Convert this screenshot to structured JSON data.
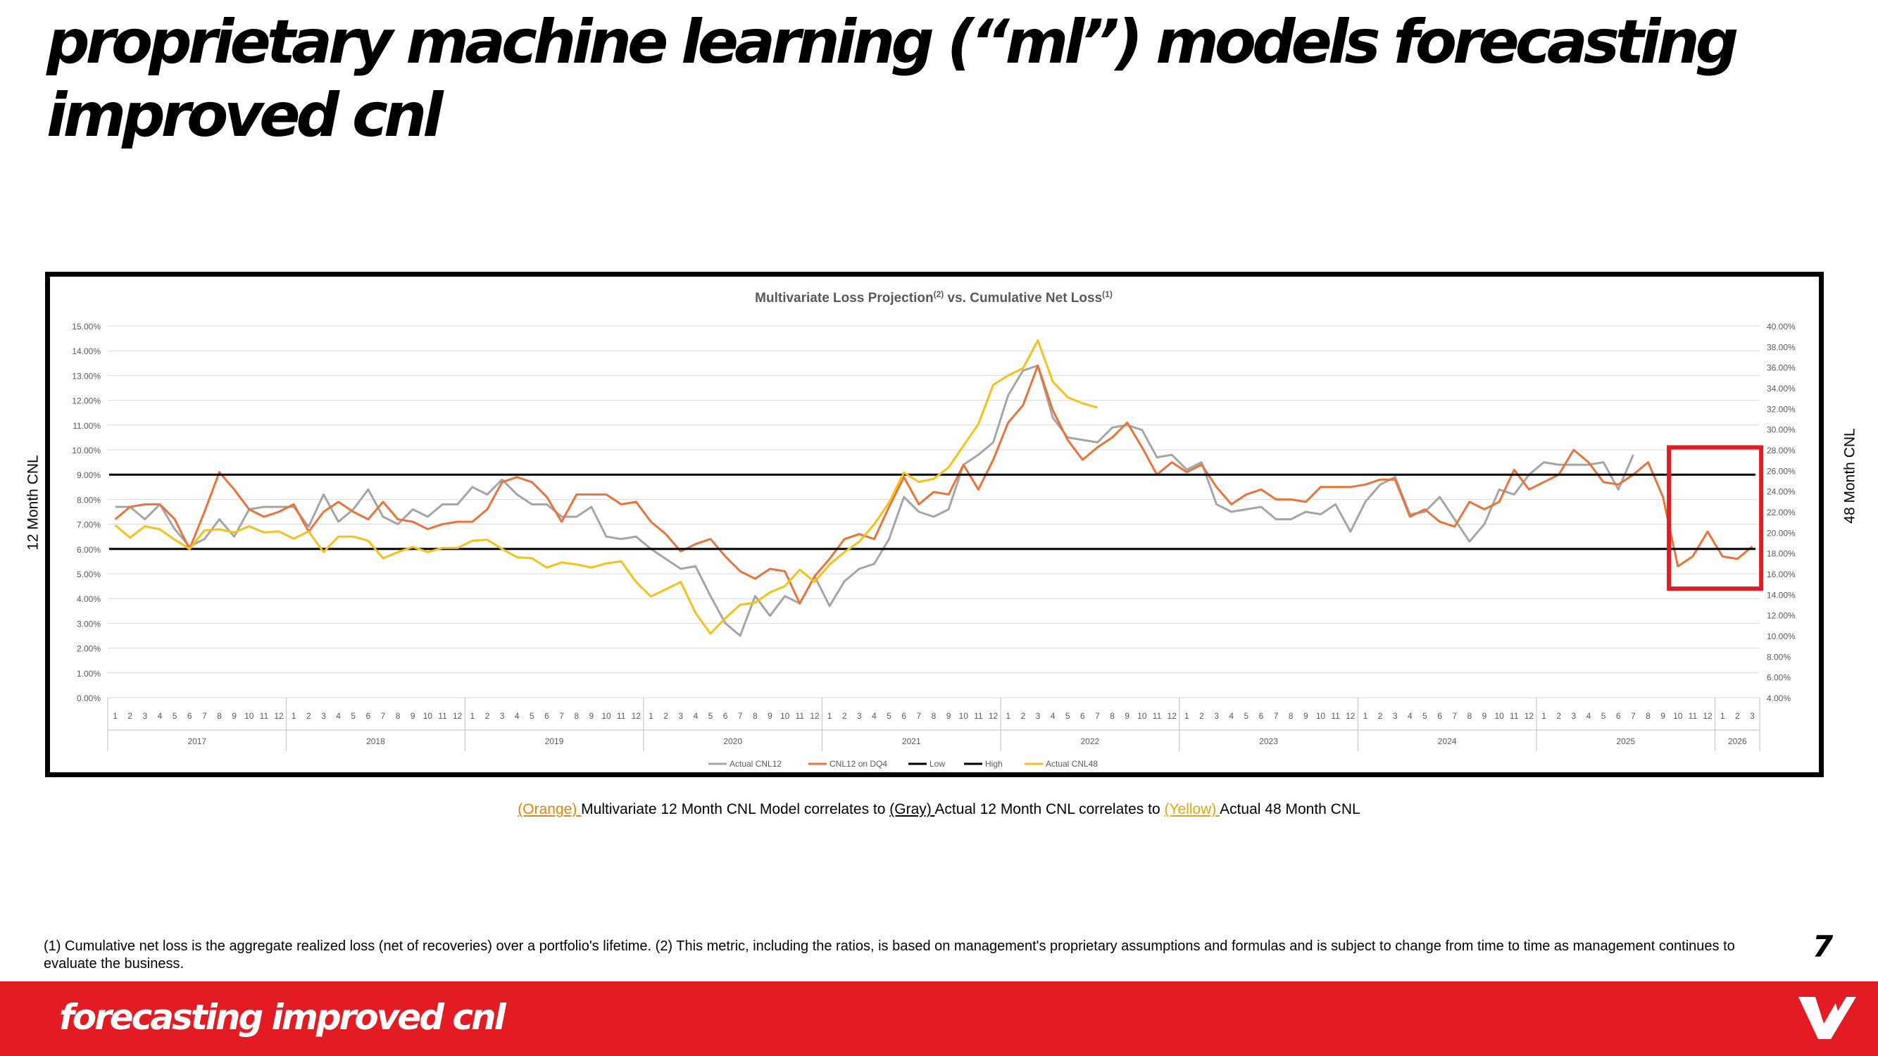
{
  "page": {
    "title": "proprietary machine learning (“ml”) models forecasting improved cnl",
    "caption": {
      "orange": "(Orange) ",
      "part1": "Multivariate 12 Month CNL Model correlates to ",
      "gray": "(Gray) ",
      "part2": "Actual 12 Month CNL correlates to ",
      "yellow": "(Yellow) ",
      "part3": "Actual 48 Month CNL"
    },
    "footnote": "(1) Cumulative net loss is the aggregate realized loss (net of recoveries) over a portfolio's lifetime. (2) This metric, including the ratios, is based on management's proprietary assumptions and formulas and is subject to change from time to time as management continues to evaluate the business.",
    "page_number": "7",
    "footer_text": "forecasting improved cnl",
    "ylabel_left": "12 Month CNL",
    "ylabel_right": "48 Month CNL",
    "colors": {
      "accent_red": "#e31b23",
      "orange": "#e8743b",
      "gray": "#a5a5a5",
      "yellow": "#f5c11a",
      "black": "#000000"
    }
  },
  "chart_data": {
    "type": "line",
    "title": "Multivariate Loss Projection(2) vs. Cumulative Net Loss(1)",
    "years": [
      "2017",
      "2018",
      "2019",
      "2020",
      "2021",
      "2022",
      "2023",
      "2024",
      "2025",
      "2026"
    ],
    "months_per_year": [
      12,
      12,
      12,
      12,
      12,
      12,
      12,
      12,
      12,
      3
    ],
    "y_left": {
      "min": 0,
      "max": 15,
      "step": 1,
      "format": "%"
    },
    "y_right": {
      "min": 4,
      "max": 40,
      "step": 2,
      "format": "%"
    },
    "grid": true,
    "legend_position": "bottom",
    "highlight_box": {
      "from_index": 105,
      "to_index": 110,
      "color": "#e31b23"
    },
    "series": [
      {
        "name": "Actual CNL12",
        "axis": "left",
        "color": "#a5a5a5",
        "values": [
          7.7,
          7.7,
          7.2,
          7.8,
          6.8,
          6.1,
          6.4,
          7.2,
          6.5,
          7.6,
          7.7,
          7.7,
          7.7,
          6.9,
          8.2,
          7.1,
          7.6,
          8.4,
          7.3,
          7.0,
          7.6,
          7.3,
          7.8,
          7.8,
          8.5,
          8.2,
          8.8,
          8.2,
          7.8,
          7.8,
          7.3,
          7.3,
          7.7,
          6.5,
          6.4,
          6.5,
          6.0,
          5.6,
          5.2,
          5.3,
          4.1,
          3.0,
          2.5,
          4.1,
          3.3,
          4.1,
          3.8,
          4.9,
          3.7,
          4.7,
          5.2,
          5.4,
          6.4,
          8.1,
          7.5,
          7.3,
          7.6,
          9.4,
          9.8,
          10.3,
          12.2,
          13.2,
          13.4,
          11.3,
          10.5,
          10.4,
          10.3,
          10.9,
          11.0,
          10.8,
          9.7,
          9.8,
          9.2,
          9.5,
          7.8,
          7.5,
          7.6,
          7.7,
          7.2,
          7.2,
          7.5,
          7.4,
          7.8,
          6.7,
          7.9,
          8.6,
          8.9,
          7.4,
          7.5,
          8.1,
          7.2,
          6.3,
          7.0,
          8.4,
          8.2,
          9.0,
          9.5,
          9.4,
          9.4,
          9.4,
          9.5,
          8.4,
          9.8,
          null,
          null,
          null,
          null,
          null,
          null,
          null,
          null
        ]
      },
      {
        "name": "CNL12 on DQ4",
        "axis": "left",
        "color": "#e8743b",
        "values": [
          7.2,
          7.7,
          7.8,
          7.8,
          7.2,
          6.0,
          7.5,
          9.1,
          8.4,
          7.6,
          7.3,
          7.5,
          7.8,
          6.7,
          7.5,
          7.9,
          7.5,
          7.2,
          7.9,
          7.2,
          7.1,
          6.8,
          7.0,
          7.1,
          7.1,
          7.6,
          8.7,
          8.9,
          8.7,
          8.1,
          7.1,
          8.2,
          8.2,
          8.2,
          7.8,
          7.9,
          7.1,
          6.6,
          5.9,
          6.2,
          6.4,
          5.7,
          5.1,
          4.8,
          5.2,
          5.1,
          3.8,
          4.9,
          5.6,
          6.4,
          6.6,
          6.4,
          7.7,
          8.9,
          7.8,
          8.3,
          8.2,
          9.4,
          8.4,
          9.6,
          11.1,
          11.8,
          13.4,
          11.6,
          10.4,
          9.6,
          10.1,
          10.5,
          11.1,
          10.1,
          9.0,
          9.5,
          9.1,
          9.4,
          8.5,
          7.8,
          8.2,
          8.4,
          8.0,
          8.0,
          7.9,
          8.5,
          8.5,
          8.5,
          8.6,
          8.8,
          8.8,
          7.3,
          7.6,
          7.1,
          6.9,
          7.9,
          7.6,
          7.9,
          9.2,
          8.4,
          8.7,
          9.0,
          10.0,
          9.5,
          8.7,
          8.6,
          9.0,
          9.5,
          8.1,
          5.3,
          5.7,
          6.7,
          5.7,
          5.6,
          6.1
        ]
      },
      {
        "name": "Low",
        "axis": "left",
        "color": "#000000",
        "values": [
          6.0,
          6.0
        ]
      },
      {
        "name": "High",
        "axis": "left",
        "color": "#000000",
        "values": [
          9.0,
          9.0
        ]
      },
      {
        "name": "Actual CNL48",
        "axis": "right",
        "color": "#f5c11a",
        "values": [
          20.7,
          19.5,
          20.6,
          20.3,
          19.3,
          18.4,
          20.2,
          20.3,
          20.0,
          20.6,
          20.0,
          20.1,
          19.4,
          20.1,
          18.1,
          19.6,
          19.6,
          19.2,
          17.5,
          18.1,
          18.6,
          18.1,
          18.5,
          18.5,
          19.2,
          19.3,
          18.4,
          17.6,
          17.5,
          16.6,
          17.1,
          16.9,
          16.6,
          17.0,
          17.2,
          15.2,
          13.8,
          14.5,
          15.2,
          12.2,
          10.2,
          11.7,
          13.0,
          13.2,
          14.2,
          14.8,
          16.4,
          15.2,
          16.9,
          18.1,
          19.1,
          20.8,
          22.9,
          25.8,
          24.9,
          25.2,
          26.3,
          28.4,
          30.5,
          34.3,
          35.2,
          35.9,
          38.6,
          34.6,
          33.1,
          32.5,
          32.1,
          null,
          null,
          null,
          null,
          null,
          null,
          null,
          null,
          null,
          null,
          null,
          null,
          null,
          null,
          null,
          null,
          null,
          null,
          null,
          null,
          null,
          null,
          null,
          null,
          null,
          null,
          null,
          null,
          null,
          null,
          null,
          null,
          null,
          null,
          null,
          null,
          null,
          null,
          null,
          null,
          null,
          null,
          null,
          null
        ]
      }
    ]
  }
}
